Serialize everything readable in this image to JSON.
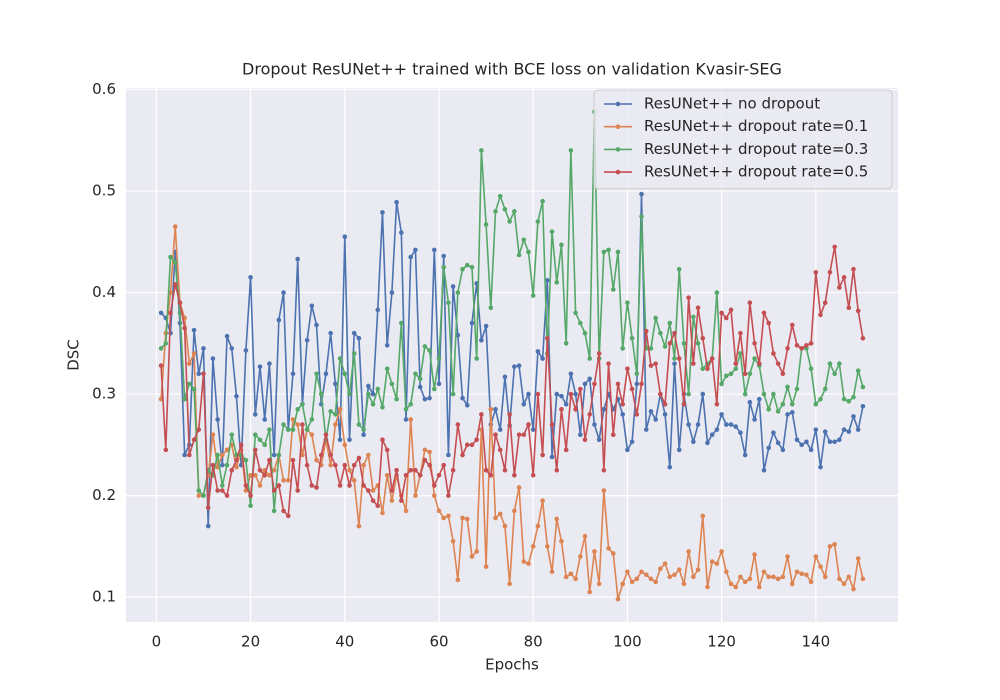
{
  "chart_data": {
    "type": "line",
    "title": "Dropout ResUNet++ trained with BCE loss on validation Kvasir-SEG",
    "xlabel": "Epochs",
    "ylabel": "DSC",
    "xlim": [
      -6.45,
      157.45
    ],
    "ylim": [
      0.0755,
      0.6015
    ],
    "xticks": [
      0,
      20,
      40,
      60,
      80,
      100,
      120,
      140
    ],
    "yticks": [
      0.1,
      0.2,
      0.3,
      0.4,
      0.5,
      0.6
    ],
    "grid": true,
    "legend": "upper right",
    "x": [
      1,
      2,
      3,
      4,
      5,
      6,
      7,
      8,
      9,
      10,
      11,
      12,
      13,
      14,
      15,
      16,
      17,
      18,
      19,
      20,
      21,
      22,
      23,
      24,
      25,
      26,
      27,
      28,
      29,
      30,
      31,
      32,
      33,
      34,
      35,
      36,
      37,
      38,
      39,
      40,
      41,
      42,
      43,
      44,
      45,
      46,
      47,
      48,
      49,
      50,
      51,
      52,
      53,
      54,
      55,
      56,
      57,
      58,
      59,
      60,
      61,
      62,
      63,
      64,
      65,
      66,
      67,
      68,
      69,
      70,
      71,
      72,
      73,
      74,
      75,
      76,
      77,
      78,
      79,
      80,
      81,
      82,
      83,
      84,
      85,
      86,
      87,
      88,
      89,
      90,
      91,
      92,
      93,
      94,
      95,
      96,
      97,
      98,
      99,
      100,
      101,
      102,
      103,
      104,
      105,
      106,
      107,
      108,
      109,
      110,
      111,
      112,
      113,
      114,
      115,
      116,
      117,
      118,
      119,
      120,
      121,
      122,
      123,
      124,
      125,
      126,
      127,
      128,
      129,
      130,
      131,
      132,
      133,
      134,
      135,
      136,
      137,
      138,
      139,
      140,
      141,
      142,
      143,
      144,
      145,
      146,
      147,
      148,
      149,
      150
    ],
    "series": [
      {
        "name": "ResUNet++ no dropout",
        "color": "#4c72b0",
        "values": [
          0.38,
          0.375,
          0.36,
          0.44,
          0.37,
          0.24,
          0.25,
          0.363,
          0.32,
          0.345,
          0.17,
          0.335,
          0.275,
          0.23,
          0.357,
          0.345,
          0.298,
          0.23,
          0.343,
          0.415,
          0.28,
          0.327,
          0.275,
          0.33,
          0.24,
          0.373,
          0.4,
          0.265,
          0.32,
          0.433,
          0.29,
          0.353,
          0.387,
          0.368,
          0.29,
          0.32,
          0.36,
          0.31,
          0.255,
          0.455,
          0.255,
          0.36,
          0.355,
          0.26,
          0.308,
          0.3,
          0.383,
          0.479,
          0.348,
          0.4,
          0.489,
          0.459,
          0.275,
          0.435,
          0.442,
          0.307,
          0.295,
          0.296,
          0.442,
          0.31,
          0.436,
          0.24,
          0.406,
          0.358,
          0.296,
          0.289,
          0.37,
          0.409,
          0.353,
          0.367,
          0.27,
          0.285,
          0.265,
          0.317,
          0.269,
          0.327,
          0.328,
          0.29,
          0.3,
          0.265,
          0.342,
          0.335,
          0.412,
          0.238,
          0.3,
          0.298,
          0.29,
          0.32,
          0.3,
          0.26,
          0.31,
          0.315,
          0.27,
          0.255,
          0.285,
          0.3,
          0.285,
          0.295,
          0.28,
          0.245,
          0.253,
          0.31,
          0.497,
          0.265,
          0.283,
          0.275,
          0.3,
          0.28,
          0.228,
          0.33,
          0.245,
          0.3,
          0.27,
          0.253,
          0.27,
          0.3,
          0.252,
          0.26,
          0.265,
          0.28,
          0.27,
          0.27,
          0.268,
          0.262,
          0.24,
          0.292,
          0.275,
          0.295,
          0.225,
          0.247,
          0.262,
          0.252,
          0.245,
          0.28,
          0.282,
          0.255,
          0.25,
          0.253,
          0.245,
          0.265,
          0.228,
          0.263,
          0.253,
          0.253,
          0.255,
          0.265,
          0.263,
          0.278,
          0.265,
          0.288
        ]
      },
      {
        "name": "ResUNet++ dropout rate=0.1",
        "color": "#dd8452",
        "values": [
          0.295,
          0.36,
          0.4,
          0.465,
          0.39,
          0.375,
          0.33,
          0.34,
          0.2,
          0.2,
          0.22,
          0.26,
          0.228,
          0.24,
          0.245,
          0.25,
          0.228,
          0.245,
          0.205,
          0.22,
          0.22,
          0.21,
          0.225,
          0.22,
          0.225,
          0.24,
          0.215,
          0.215,
          0.275,
          0.27,
          0.24,
          0.265,
          0.26,
          0.235,
          0.23,
          0.255,
          0.23,
          0.27,
          0.285,
          0.25,
          0.225,
          0.215,
          0.17,
          0.23,
          0.24,
          0.205,
          0.21,
          0.183,
          0.22,
          0.195,
          0.22,
          0.2,
          0.185,
          0.275,
          0.2,
          0.22,
          0.245,
          0.243,
          0.2,
          0.185,
          0.178,
          0.18,
          0.155,
          0.117,
          0.178,
          0.177,
          0.14,
          0.145,
          0.265,
          0.13,
          0.285,
          0.178,
          0.182,
          0.17,
          0.113,
          0.185,
          0.208,
          0.135,
          0.133,
          0.15,
          0.17,
          0.195,
          0.15,
          0.125,
          0.177,
          0.155,
          0.12,
          0.123,
          0.118,
          0.14,
          0.16,
          0.105,
          0.145,
          0.113,
          0.205,
          0.148,
          0.143,
          0.098,
          0.113,
          0.125,
          0.115,
          0.118,
          0.125,
          0.122,
          0.118,
          0.115,
          0.128,
          0.133,
          0.12,
          0.122,
          0.127,
          0.113,
          0.145,
          0.12,
          0.127,
          0.18,
          0.11,
          0.135,
          0.133,
          0.145,
          0.125,
          0.113,
          0.11,
          0.12,
          0.115,
          0.118,
          0.142,
          0.11,
          0.125,
          0.12,
          0.12,
          0.118,
          0.12,
          0.14,
          0.113,
          0.125,
          0.123,
          0.122,
          0.115,
          0.14,
          0.13,
          0.12,
          0.15,
          0.152,
          0.118,
          0.113,
          0.12,
          0.108,
          0.138,
          0.118
        ]
      },
      {
        "name": "ResUNet++ dropout rate=0.3",
        "color": "#55a868",
        "values": [
          0.345,
          0.35,
          0.435,
          0.43,
          0.38,
          0.295,
          0.31,
          0.305,
          0.205,
          0.2,
          0.225,
          0.22,
          0.24,
          0.21,
          0.23,
          0.26,
          0.24,
          0.24,
          0.235,
          0.19,
          0.26,
          0.255,
          0.25,
          0.265,
          0.185,
          0.24,
          0.27,
          0.265,
          0.265,
          0.285,
          0.29,
          0.265,
          0.275,
          0.32,
          0.3,
          0.255,
          0.283,
          0.28,
          0.335,
          0.32,
          0.3,
          0.34,
          0.27,
          0.265,
          0.3,
          0.29,
          0.305,
          0.287,
          0.325,
          0.31,
          0.295,
          0.37,
          0.285,
          0.29,
          0.32,
          0.315,
          0.347,
          0.343,
          0.305,
          0.335,
          0.425,
          0.39,
          0.3,
          0.4,
          0.423,
          0.427,
          0.425,
          0.335,
          0.54,
          0.467,
          0.385,
          0.48,
          0.495,
          0.482,
          0.47,
          0.48,
          0.437,
          0.452,
          0.44,
          0.397,
          0.47,
          0.49,
          0.34,
          0.46,
          0.41,
          0.447,
          0.35,
          0.54,
          0.38,
          0.37,
          0.36,
          0.335,
          0.578,
          0.335,
          0.44,
          0.442,
          0.403,
          0.44,
          0.345,
          0.39,
          0.355,
          0.32,
          0.475,
          0.345,
          0.345,
          0.375,
          0.36,
          0.347,
          0.37,
          0.335,
          0.423,
          0.35,
          0.3,
          0.376,
          0.35,
          0.325,
          0.33,
          0.335,
          0.4,
          0.31,
          0.318,
          0.32,
          0.325,
          0.34,
          0.3,
          0.32,
          0.335,
          0.328,
          0.3,
          0.285,
          0.3,
          0.283,
          0.29,
          0.307,
          0.29,
          0.305,
          0.345,
          0.345,
          0.325,
          0.29,
          0.295,
          0.305,
          0.33,
          0.32,
          0.33,
          0.295,
          0.293,
          0.297,
          0.323,
          0.307
        ]
      },
      {
        "name": "ResUNet++ dropout rate=0.5",
        "color": "#c44e52",
        "values": [
          0.328,
          0.245,
          0.38,
          0.408,
          0.39,
          0.365,
          0.24,
          0.255,
          0.265,
          0.32,
          0.188,
          0.23,
          0.205,
          0.205,
          0.2,
          0.225,
          0.235,
          0.25,
          0.21,
          0.2,
          0.245,
          0.225,
          0.22,
          0.235,
          0.205,
          0.21,
          0.185,
          0.18,
          0.235,
          0.205,
          0.27,
          0.23,
          0.21,
          0.208,
          0.24,
          0.26,
          0.24,
          0.23,
          0.21,
          0.23,
          0.21,
          0.23,
          0.237,
          0.21,
          0.205,
          0.195,
          0.19,
          0.255,
          0.245,
          0.205,
          0.225,
          0.195,
          0.22,
          0.225,
          0.225,
          0.22,
          0.235,
          0.23,
          0.21,
          0.22,
          0.23,
          0.2,
          0.225,
          0.27,
          0.24,
          0.25,
          0.25,
          0.255,
          0.28,
          0.225,
          0.22,
          0.26,
          0.245,
          0.225,
          0.28,
          0.22,
          0.26,
          0.26,
          0.27,
          0.22,
          0.3,
          0.24,
          0.355,
          0.27,
          0.225,
          0.285,
          0.245,
          0.3,
          0.285,
          0.305,
          0.255,
          0.28,
          0.31,
          0.34,
          0.225,
          0.33,
          0.26,
          0.31,
          0.29,
          0.325,
          0.305,
          0.28,
          0.31,
          0.362,
          0.328,
          0.33,
          0.3,
          0.29,
          0.35,
          0.36,
          0.335,
          0.29,
          0.395,
          0.33,
          0.385,
          0.355,
          0.325,
          0.335,
          0.29,
          0.38,
          0.375,
          0.383,
          0.33,
          0.36,
          0.32,
          0.39,
          0.35,
          0.33,
          0.38,
          0.37,
          0.34,
          0.33,
          0.32,
          0.345,
          0.368,
          0.348,
          0.345,
          0.348,
          0.35,
          0.42,
          0.378,
          0.39,
          0.42,
          0.445,
          0.405,
          0.415,
          0.385,
          0.423,
          0.382,
          0.355
        ]
      }
    ]
  }
}
